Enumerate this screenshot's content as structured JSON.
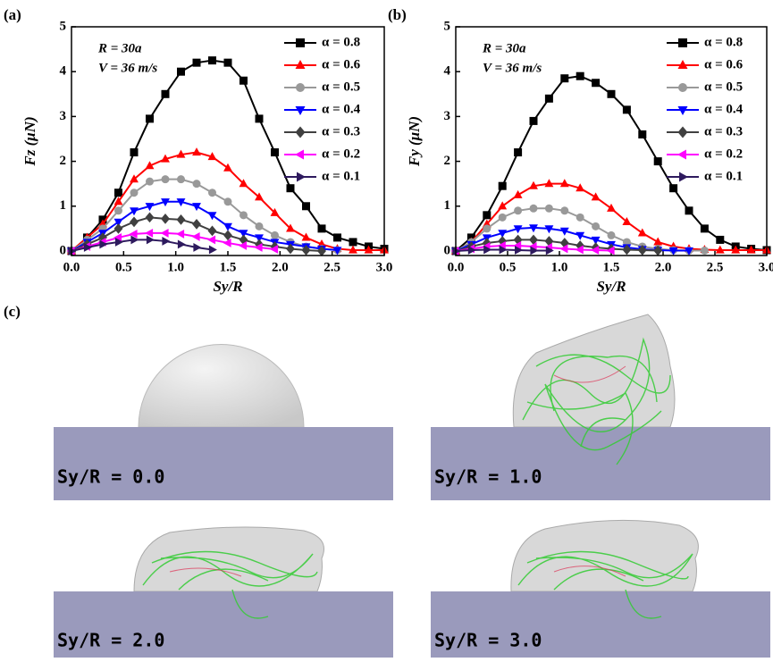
{
  "chart_data": [
    {
      "type": "line",
      "panel_label": "(a)",
      "x_label": "Sy/R",
      "y_label": "Fz (μN)",
      "annotations": [
        "R = 30a",
        "V = 36 m/s"
      ],
      "x": [
        0,
        0.15,
        0.3,
        0.45,
        0.6,
        0.75,
        0.9,
        1.05,
        1.2,
        1.35,
        1.5,
        1.65,
        1.8,
        1.95,
        2.1,
        2.25,
        2.4,
        2.55,
        2.7,
        2.85,
        3.0
      ],
      "xlim": [
        0,
        3
      ],
      "xticks": [
        {
          "value": 0,
          "label": "0.0"
        },
        {
          "value": 0.5,
          "label": "0.5"
        },
        {
          "value": 1,
          "label": "1.0"
        },
        {
          "value": 1.5,
          "label": "1.5"
        },
        {
          "value": 2,
          "label": "2.0"
        },
        {
          "value": 2.5,
          "label": "2.5"
        },
        {
          "value": 3,
          "label": "3.0"
        }
      ],
      "ylim": [
        -0.1,
        5
      ],
      "yticks": [
        0,
        1,
        2,
        3,
        4,
        5
      ],
      "legend": "top-right",
      "series": [
        {
          "name": "α = 0.8",
          "color": "#000000",
          "marker": "square",
          "values": [
            0,
            0.3,
            0.7,
            1.3,
            2.2,
            2.95,
            3.5,
            4.0,
            4.2,
            4.25,
            4.2,
            3.8,
            2.95,
            2.2,
            1.4,
            1.0,
            0.5,
            0.3,
            0.2,
            0.1,
            0.05
          ]
        },
        {
          "name": "α = 0.6",
          "color": "#ff0000",
          "marker": "triangle-up",
          "values": [
            0,
            0.3,
            0.6,
            1.1,
            1.6,
            1.9,
            2.05,
            2.15,
            2.2,
            2.1,
            1.85,
            1.5,
            1.2,
            0.85,
            0.5,
            0.3,
            0.15,
            0.05,
            0.02,
            0.02,
            0.02
          ]
        },
        {
          "name": "α = 0.5",
          "color": "#999999",
          "marker": "circle",
          "values": [
            0,
            0.25,
            0.5,
            0.9,
            1.3,
            1.55,
            1.6,
            1.6,
            1.5,
            1.3,
            1.1,
            0.8,
            0.55,
            0.35,
            0.2,
            0.1,
            0.05,
            0.02,
            null,
            null,
            null
          ]
        },
        {
          "name": "α = 0.4",
          "color": "#0000ff",
          "marker": "triangle-down",
          "values": [
            0,
            0.2,
            0.4,
            0.65,
            0.9,
            1.0,
            1.1,
            1.1,
            1.0,
            0.8,
            0.55,
            0.4,
            0.3,
            0.2,
            0.15,
            0.1,
            0.05,
            0.02,
            null,
            null,
            null
          ]
        },
        {
          "name": "α = 0.3",
          "color": "#404040",
          "marker": "diamond",
          "values": [
            0,
            0.15,
            0.3,
            0.5,
            0.65,
            0.75,
            0.72,
            0.7,
            0.6,
            0.45,
            0.35,
            0.25,
            0.15,
            0.1,
            0.05,
            0.02,
            0,
            null,
            null,
            null,
            null
          ]
        },
        {
          "name": "α = 0.2",
          "color": "#ff00ff",
          "marker": "triangle-left",
          "values": [
            0,
            0.1,
            0.2,
            0.3,
            0.38,
            0.4,
            0.4,
            0.38,
            0.32,
            0.25,
            0.18,
            0.12,
            0.08,
            0.04,
            null,
            null,
            null,
            null,
            null,
            null,
            null
          ]
        },
        {
          "name": "α = 0.1",
          "color": "#2e1a5e",
          "marker": "triangle-right",
          "values": [
            0,
            0.08,
            0.15,
            0.2,
            0.25,
            0.25,
            0.22,
            0.15,
            0.08,
            0.03,
            null,
            null,
            null,
            null,
            null,
            null,
            null,
            null,
            null,
            null,
            null
          ]
        }
      ]
    },
    {
      "type": "line",
      "panel_label": "(b)",
      "x_label": "Sy/R",
      "y_label": "Fy (μN)",
      "annotations": [
        "R = 30a",
        "V = 36 m/s"
      ],
      "x": [
        0,
        0.15,
        0.3,
        0.45,
        0.6,
        0.75,
        0.9,
        1.05,
        1.2,
        1.35,
        1.5,
        1.65,
        1.8,
        1.95,
        2.1,
        2.25,
        2.4,
        2.55,
        2.7,
        2.85,
        3.0
      ],
      "xlim": [
        0,
        3
      ],
      "xticks": [
        {
          "value": 0,
          "label": "0.0"
        },
        {
          "value": 0.5,
          "label": "0.5"
        },
        {
          "value": 1,
          "label": "1.0"
        },
        {
          "value": 1.5,
          "label": "1.5"
        },
        {
          "value": 2,
          "label": "2.0"
        },
        {
          "value": 2.5,
          "label": "2.5"
        },
        {
          "value": 3,
          "label": "3.0"
        }
      ],
      "ylim": [
        -0.1,
        5
      ],
      "yticks": [
        0,
        1,
        2,
        3,
        4,
        5
      ],
      "legend": "top-right",
      "series": [
        {
          "name": "α = 0.8",
          "color": "#000000",
          "marker": "square",
          "values": [
            0,
            0.3,
            0.8,
            1.45,
            2.2,
            2.9,
            3.4,
            3.85,
            3.9,
            3.75,
            3.5,
            3.15,
            2.6,
            2.0,
            1.4,
            0.9,
            0.5,
            0.25,
            0.1,
            0.05,
            0.02
          ]
        },
        {
          "name": "α = 0.6",
          "color": "#ff0000",
          "marker": "triangle-up",
          "values": [
            0,
            0.2,
            0.6,
            1.0,
            1.25,
            1.45,
            1.5,
            1.5,
            1.4,
            1.2,
            0.95,
            0.65,
            0.4,
            0.2,
            0.1,
            0.05,
            0.03,
            0.02,
            0.02,
            0.02,
            0.02
          ]
        },
        {
          "name": "α = 0.5",
          "color": "#999999",
          "marker": "circle",
          "values": [
            0,
            0.2,
            0.5,
            0.75,
            0.9,
            0.95,
            0.95,
            0.9,
            0.75,
            0.55,
            0.35,
            0.2,
            0.1,
            0.05,
            0.02,
            0.01,
            0.01,
            null,
            null,
            null,
            null
          ]
        },
        {
          "name": "α = 0.4",
          "color": "#0000ff",
          "marker": "triangle-down",
          "values": [
            0,
            0.15,
            0.3,
            0.4,
            0.5,
            0.52,
            0.5,
            0.45,
            0.35,
            0.25,
            0.15,
            0.08,
            0.04,
            0.02,
            0.01,
            0.01,
            null,
            null,
            null,
            null,
            null
          ]
        },
        {
          "name": "α = 0.3",
          "color": "#404040",
          "marker": "diamond",
          "values": [
            0,
            0.1,
            0.18,
            0.22,
            0.25,
            0.25,
            0.22,
            0.18,
            0.12,
            0.08,
            0.05,
            0.03,
            0.02,
            0.01,
            null,
            null,
            null,
            null,
            null,
            null,
            null
          ]
        },
        {
          "name": "α = 0.2",
          "color": "#ff00ff",
          "marker": "triangle-left",
          "values": [
            0,
            0.05,
            0.1,
            0.12,
            0.12,
            0.1,
            0.08,
            0.05,
            0.03,
            0.02,
            0.01,
            null,
            null,
            null,
            null,
            null,
            null,
            null,
            null,
            null,
            null
          ]
        },
        {
          "name": "α = 0.1",
          "color": "#2e1a5e",
          "marker": "triangle-right",
          "values": [
            0,
            0.02,
            0.03,
            0.03,
            0.02,
            0.01,
            0.01,
            null,
            null,
            null,
            null,
            null,
            null,
            null,
            null,
            null,
            null,
            null,
            null,
            null,
            null
          ]
        }
      ]
    }
  ],
  "panel_c": {
    "label": "(c)",
    "captions": [
      "Sy/R = 0.0",
      "Sy/R = 1.0",
      "Sy/R = 2.0",
      "Sy/R = 3.0"
    ]
  }
}
